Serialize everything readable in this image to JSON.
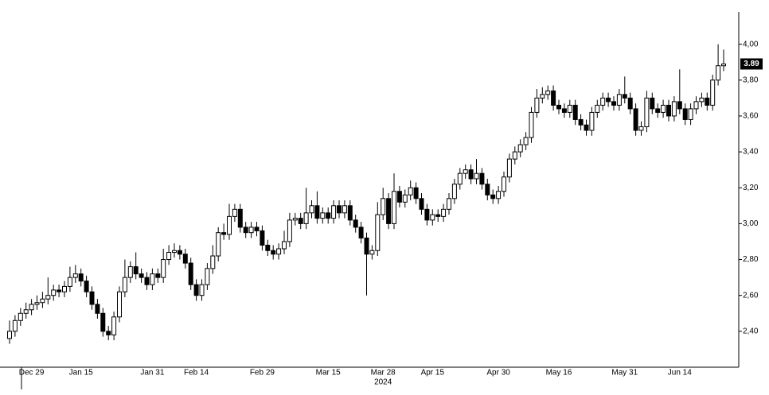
{
  "chart_data": {
    "type": "candlestick",
    "categories": [
      null,
      null,
      null,
      null,
      "Dec 29",
      null,
      null,
      null,
      null,
      null,
      null,
      null,
      null,
      "Jan 15",
      null,
      null,
      null,
      null,
      null,
      null,
      null,
      null,
      null,
      null,
      null,
      null,
      "Jan 31",
      null,
      null,
      null,
      null,
      null,
      null,
      null,
      "Feb 14",
      null,
      null,
      null,
      null,
      null,
      null,
      null,
      null,
      null,
      null,
      null,
      "Feb 29",
      null,
      null,
      null,
      null,
      null,
      null,
      null,
      null,
      null,
      null,
      null,
      "Mar 15",
      null,
      null,
      null,
      null,
      null,
      null,
      null,
      null,
      null,
      "Mar 28",
      null,
      null,
      null,
      null,
      null,
      null,
      null,
      null,
      "Apr 15",
      null,
      null,
      null,
      null,
      null,
      null,
      null,
      null,
      null,
      null,
      null,
      "Apr 30",
      null,
      null,
      null,
      null,
      null,
      null,
      null,
      null,
      null,
      null,
      "May 16",
      null,
      null,
      null,
      null,
      null,
      null,
      null,
      null,
      null,
      null,
      null,
      "May 31",
      null,
      null,
      null,
      null,
      null,
      null,
      null,
      null,
      null,
      "Jun 14",
      null,
      null,
      null,
      null,
      null,
      null,
      null,
      null
    ],
    "year_label": "2024",
    "open": [
      2.36,
      2.4,
      2.46,
      2.5,
      2.52,
      2.55,
      2.56,
      2.58,
      2.6,
      2.63,
      2.62,
      2.65,
      2.7,
      2.72,
      2.68,
      2.62,
      2.55,
      2.5,
      2.4,
      2.38,
      2.48,
      2.62,
      2.7,
      2.76,
      2.72,
      2.7,
      2.66,
      2.72,
      2.7,
      2.8,
      2.84,
      2.85,
      2.83,
      2.78,
      2.66,
      2.6,
      2.66,
      2.75,
      2.82,
      2.95,
      2.94,
      3.04,
      3.08,
      2.98,
      2.95,
      2.98,
      2.96,
      2.88,
      2.85,
      2.83,
      2.86,
      2.9,
      3.02,
      3.03,
      3.0,
      3.06,
      3.1,
      3.03,
      3.06,
      3.03,
      3.1,
      3.06,
      3.1,
      3.02,
      2.98,
      2.92,
      2.83,
      2.85,
      3.05,
      3.14,
      3.0,
      3.18,
      3.12,
      3.16,
      3.2,
      3.14,
      3.08,
      3.02,
      3.05,
      3.04,
      3.08,
      3.14,
      3.22,
      3.28,
      3.3,
      3.25,
      3.28,
      3.22,
      3.16,
      3.14,
      3.18,
      3.26,
      3.36,
      3.4,
      3.44,
      3.48,
      3.62,
      3.7,
      3.72,
      3.74,
      3.66,
      3.64,
      3.62,
      3.66,
      3.58,
      3.55,
      3.52,
      3.62,
      3.66,
      3.7,
      3.68,
      3.66,
      3.72,
      3.7,
      3.64,
      3.52,
      3.54,
      3.7,
      3.64,
      3.62,
      3.66,
      3.6,
      3.68,
      3.64,
      3.58,
      3.64,
      3.68,
      3.7,
      3.66,
      3.8,
      3.88
    ],
    "high": [
      2.46,
      2.49,
      2.53,
      2.56,
      2.58,
      2.6,
      2.62,
      2.7,
      2.66,
      2.66,
      2.68,
      2.76,
      2.77,
      2.75,
      2.71,
      2.65,
      2.58,
      2.53,
      2.43,
      2.51,
      2.65,
      2.8,
      2.79,
      2.84,
      2.75,
      2.73,
      2.75,
      2.75,
      2.86,
      2.88,
      2.89,
      2.88,
      2.86,
      2.81,
      2.69,
      2.69,
      2.78,
      2.88,
      2.98,
      3.0,
      3.11,
      3.11,
      3.11,
      3.01,
      3.01,
      3.01,
      2.99,
      2.91,
      2.88,
      2.89,
      2.96,
      3.06,
      3.06,
      3.06,
      3.2,
      3.13,
      3.18,
      3.09,
      3.09,
      3.13,
      3.13,
      3.13,
      3.13,
      3.05,
      3.01,
      2.95,
      2.88,
      3.12,
      3.2,
      3.17,
      3.28,
      3.21,
      3.19,
      3.24,
      3.23,
      3.17,
      3.11,
      3.08,
      3.08,
      3.11,
      3.17,
      3.25,
      3.31,
      3.33,
      3.33,
      3.36,
      3.31,
      3.25,
      3.19,
      3.21,
      3.29,
      3.39,
      3.43,
      3.47,
      3.51,
      3.65,
      3.75,
      3.76,
      3.77,
      3.77,
      3.69,
      3.67,
      3.69,
      3.69,
      3.61,
      3.58,
      3.65,
      3.69,
      3.73,
      3.73,
      3.71,
      3.75,
      3.82,
      3.73,
      3.67,
      3.57,
      3.74,
      3.73,
      3.67,
      3.69,
      3.69,
      3.71,
      3.86,
      3.67,
      3.67,
      3.71,
      3.73,
      3.73,
      3.83,
      4.0,
      3.97
    ],
    "low": [
      2.33,
      2.37,
      2.43,
      2.47,
      2.49,
      2.52,
      2.53,
      2.55,
      2.57,
      2.59,
      2.59,
      2.62,
      2.67,
      2.65,
      2.59,
      2.52,
      2.47,
      2.37,
      2.35,
      2.35,
      2.45,
      2.59,
      2.67,
      2.69,
      2.67,
      2.63,
      2.63,
      2.67,
      2.67,
      2.77,
      2.81,
      2.8,
      2.75,
      2.63,
      2.57,
      2.57,
      2.63,
      2.72,
      2.79,
      2.91,
      2.91,
      3.01,
      2.95,
      2.92,
      2.92,
      2.93,
      2.85,
      2.82,
      2.8,
      2.8,
      2.83,
      2.87,
      2.99,
      2.97,
      2.97,
      3.03,
      3.0,
      3.0,
      3.0,
      3.0,
      3.03,
      3.03,
      2.99,
      2.95,
      2.89,
      2.6,
      2.8,
      2.82,
      3.02,
      2.97,
      2.97,
      3.09,
      3.09,
      3.13,
      3.11,
      3.05,
      2.99,
      2.99,
      3.01,
      3.01,
      3.05,
      3.11,
      3.19,
      3.25,
      3.22,
      3.22,
      3.19,
      3.13,
      3.11,
      3.11,
      3.15,
      3.23,
      3.33,
      3.37,
      3.41,
      3.45,
      3.59,
      3.67,
      3.69,
      3.63,
      3.61,
      3.59,
      3.59,
      3.55,
      3.52,
      3.49,
      3.49,
      3.59,
      3.63,
      3.65,
      3.63,
      3.63,
      3.67,
      3.61,
      3.49,
      3.49,
      3.51,
      3.61,
      3.59,
      3.59,
      3.57,
      3.57,
      3.61,
      3.55,
      3.55,
      3.61,
      3.65,
      3.63,
      3.63,
      3.77,
      3.85
    ],
    "close": [
      2.4,
      2.46,
      2.5,
      2.52,
      2.55,
      2.56,
      2.58,
      2.6,
      2.63,
      2.62,
      2.65,
      2.7,
      2.72,
      2.68,
      2.62,
      2.55,
      2.5,
      2.4,
      2.38,
      2.48,
      2.62,
      2.7,
      2.76,
      2.72,
      2.7,
      2.66,
      2.72,
      2.7,
      2.8,
      2.84,
      2.85,
      2.83,
      2.78,
      2.66,
      2.6,
      2.66,
      2.75,
      2.82,
      2.95,
      2.94,
      3.04,
      3.08,
      2.98,
      2.95,
      2.98,
      2.96,
      2.88,
      2.85,
      2.83,
      2.86,
      2.9,
      3.02,
      3.03,
      3.0,
      3.06,
      3.1,
      3.03,
      3.06,
      3.03,
      3.1,
      3.06,
      3.1,
      3.02,
      2.98,
      2.92,
      2.83,
      2.85,
      3.05,
      3.14,
      3.0,
      3.18,
      3.12,
      3.16,
      3.2,
      3.14,
      3.08,
      3.02,
      3.05,
      3.04,
      3.08,
      3.14,
      3.22,
      3.28,
      3.3,
      3.25,
      3.28,
      3.22,
      3.16,
      3.14,
      3.18,
      3.26,
      3.36,
      3.4,
      3.44,
      3.48,
      3.62,
      3.7,
      3.72,
      3.74,
      3.66,
      3.64,
      3.62,
      3.66,
      3.58,
      3.55,
      3.52,
      3.62,
      3.66,
      3.7,
      3.68,
      3.66,
      3.72,
      3.7,
      3.64,
      3.52,
      3.54,
      3.7,
      3.64,
      3.62,
      3.66,
      3.6,
      3.68,
      3.64,
      3.58,
      3.64,
      3.68,
      3.7,
      3.66,
      3.8,
      3.88,
      3.89
    ],
    "last_value_label": "3.89",
    "ylim": [
      2.2,
      4.18
    ],
    "yticks": [
      {
        "value": 2.4,
        "label": "2,40"
      },
      {
        "value": 2.6,
        "label": "2,60"
      },
      {
        "value": 2.8,
        "label": "2,80"
      },
      {
        "value": 3.0,
        "label": "3,00"
      },
      {
        "value": 3.2,
        "label": "3,20"
      },
      {
        "value": 3.4,
        "label": "3,40"
      },
      {
        "value": 3.6,
        "label": "3,60"
      },
      {
        "value": 3.8,
        "label": "3,80"
      },
      {
        "value": 4.0,
        "label": "4,00"
      }
    ],
    "up_color": "#ffffff",
    "down_color": "#000000"
  }
}
